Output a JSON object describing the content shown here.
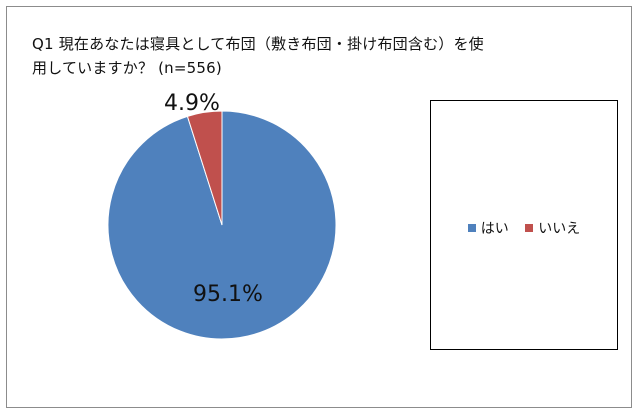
{
  "chart_data": {
    "type": "pie",
    "title_line1": "Q1 現在あなたは寝具として布団（敷き布団・掛け布団含む）を使",
    "title_line2": "用していますか？ (n=556)",
    "categories": [
      "はい",
      "いいえ"
    ],
    "values": [
      95.1,
      4.9
    ],
    "data_labels": [
      "95.1%",
      "4.9%"
    ],
    "colors": [
      "#4f81bd",
      "#c0504d"
    ],
    "legend_placement": "right",
    "start_angle": "12 o'clock, clockwise"
  }
}
